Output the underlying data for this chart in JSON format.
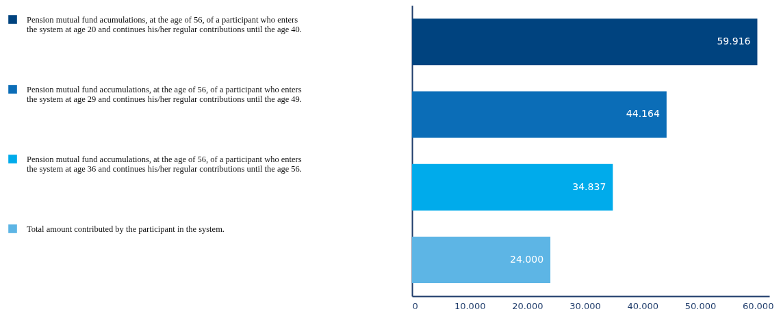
{
  "chart_data": {
    "type": "bar",
    "orientation": "horizontal",
    "categories": [
      null,
      null,
      null,
      null
    ],
    "series": [
      {
        "name": "Pension mutual fund acumulations, at the age of 56, of a participant who enters the system at age 20 and continues his/her regular contributions until the age 40.",
        "color": "#00437f",
        "values": [
          59916,
          null,
          null,
          null
        ],
        "value_labels": [
          "59.916",
          null,
          null,
          null
        ]
      },
      {
        "name": "Pension mutual fund accumulations, at the age of 56, of a participant who enters the system at age 29 and continues his/her regular contributions until the age 49.",
        "color": "#0b6db7",
        "values": [
          null,
          44164,
          null,
          null
        ],
        "value_labels": [
          null,
          "44.164",
          null,
          null
        ]
      },
      {
        "name": "Pension mutual fund accumulations, at the age of 56, of a participant who enters the system at age 36 and continues his/her regular contributions until the age 56.",
        "color": "#00abeb",
        "values": [
          null,
          null,
          34837,
          null
        ],
        "value_labels": [
          null,
          null,
          "34.837",
          null
        ]
      },
      {
        "name": "Total amount contributed by the participant in the system.",
        "color": "#5db5e5",
        "values": [
          null,
          null,
          null,
          24000
        ],
        "value_labels": [
          null,
          null,
          null,
          "24.000"
        ]
      }
    ],
    "xlim": [
      0,
      62000
    ],
    "xticks": [
      0,
      {
        "value": 10000,
        "label": "10.000"
      },
      {
        "value": 20000,
        "label": "20.000"
      },
      {
        "value": 30000,
        "label": "30.000"
      },
      {
        "value": 40000,
        "label": "40.000"
      },
      {
        "value": 50000,
        "label": "50.000"
      },
      {
        "value": 60000,
        "label": "60.000"
      }
    ],
    "legend": "left",
    "grid": false
  }
}
